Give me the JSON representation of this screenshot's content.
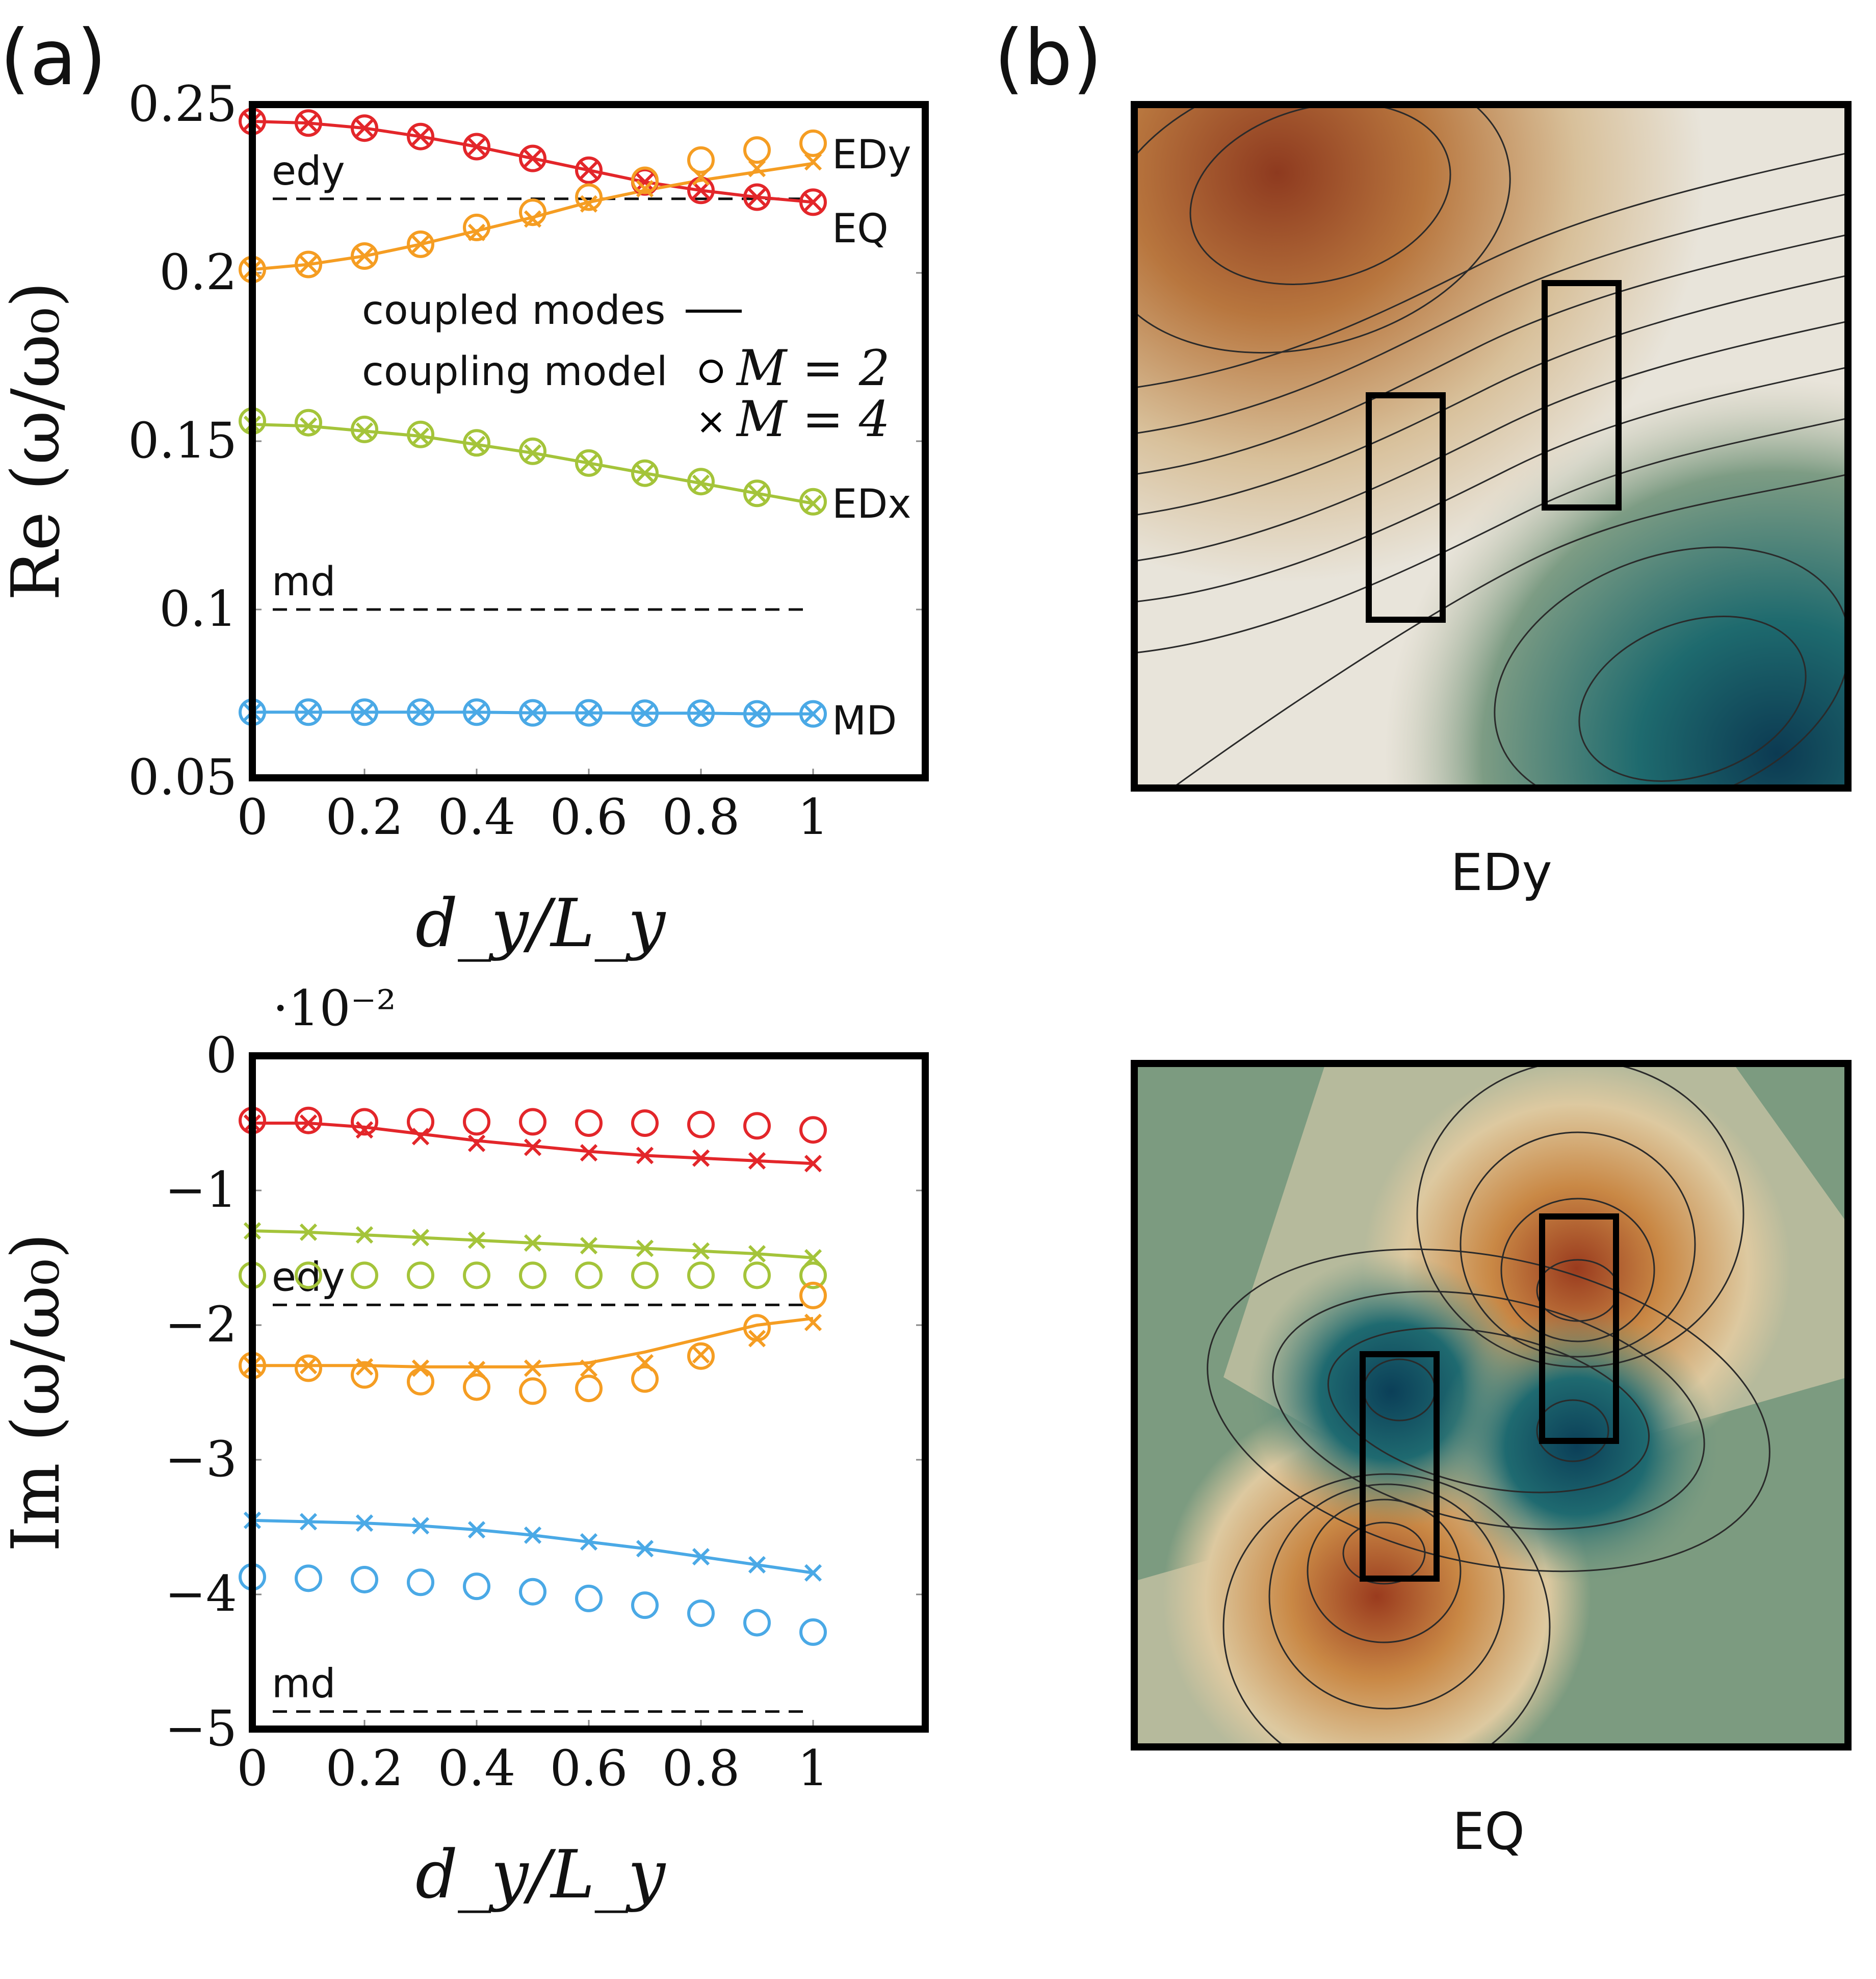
{
  "panels": {
    "a": "(a)",
    "b": "(b)"
  },
  "colors": {
    "EQ": "#e3262a",
    "EDy": "#f59d22",
    "EDx": "#a4c43a",
    "MD": "#4aa9e6",
    "dashed": "#111111"
  },
  "chart_data": [
    {
      "type": "line",
      "name": "real part",
      "ylabel": "Re (ω/ω₀)",
      "xlabel": "d_y/L_y",
      "ylim": [
        0.05,
        0.25
      ],
      "xlim": [
        0,
        1.2
      ],
      "yticks": [
        "0.25",
        "0.2",
        "0.15",
        "0.1",
        "0.05"
      ],
      "ytick_values": [
        0.25,
        0.2,
        0.15,
        0.1,
        0.05
      ],
      "xticks": [
        "0",
        "0.2",
        "0.4",
        "0.6",
        "0.8",
        "1"
      ],
      "x": [
        0,
        0.1,
        0.2,
        0.3,
        0.4,
        0.5,
        0.6,
        0.7,
        0.8,
        0.9,
        1.0
      ],
      "series": [
        {
          "name": "EQ",
          "color_key": "EQ",
          "line": [
            0.245,
            0.2445,
            0.243,
            0.2405,
            0.2375,
            0.234,
            0.2305,
            0.227,
            0.2245,
            0.2225,
            0.221
          ],
          "M2": [
            0.245,
            0.2445,
            0.243,
            0.2405,
            0.2375,
            0.234,
            0.2305,
            0.227,
            0.2245,
            0.2225,
            0.221
          ],
          "M4": [
            0.245,
            0.2445,
            0.243,
            0.2405,
            0.2375,
            0.234,
            0.2305,
            0.227,
            0.2245,
            0.2225,
            0.221
          ]
        },
        {
          "name": "EDy",
          "color_key": "EDy",
          "line": [
            0.201,
            0.2025,
            0.205,
            0.2085,
            0.2125,
            0.2165,
            0.221,
            0.2245,
            0.2275,
            0.23,
            0.2325
          ],
          "M2": [
            0.201,
            0.2025,
            0.205,
            0.2085,
            0.2135,
            0.218,
            0.2225,
            0.2275,
            0.2335,
            0.2365,
            0.2385
          ],
          "M4": [
            0.201,
            0.2025,
            0.205,
            0.2085,
            0.212,
            0.216,
            0.2205,
            0.225,
            0.2285,
            0.231,
            0.233
          ]
        },
        {
          "name": "EDx",
          "color_key": "EDx",
          "line": [
            0.155,
            0.1545,
            0.153,
            0.1515,
            0.149,
            0.1465,
            0.1435,
            0.1405,
            0.1375,
            0.1345,
            0.1315
          ],
          "M2": [
            0.156,
            0.1555,
            0.1535,
            0.152,
            0.1495,
            0.147,
            0.1435,
            0.1405,
            0.138,
            0.1345,
            0.132
          ],
          "M4": [
            0.155,
            0.1545,
            0.153,
            0.1515,
            0.149,
            0.1465,
            0.1435,
            0.1405,
            0.1375,
            0.1345,
            0.1315
          ]
        },
        {
          "name": "MD",
          "color_key": "MD",
          "line": [
            0.0695,
            0.0695,
            0.0695,
            0.0695,
            0.0695,
            0.0693,
            0.0693,
            0.0692,
            0.0692,
            0.069,
            0.069
          ],
          "M2": [
            0.0695,
            0.0695,
            0.0695,
            0.0695,
            0.0695,
            0.0693,
            0.0693,
            0.0692,
            0.0692,
            0.069,
            0.069
          ],
          "M4": [
            0.0695,
            0.0695,
            0.0695,
            0.0695,
            0.0695,
            0.0693,
            0.0693,
            0.0692,
            0.0692,
            0.069,
            0.069
          ]
        }
      ],
      "reference_lines": [
        {
          "label": "edy",
          "y": 0.222
        },
        {
          "label": "md",
          "y": 0.1
        }
      ],
      "series_labels": [
        "EDy",
        "EQ",
        "EDx",
        "MD"
      ],
      "legend": {
        "line_label": "coupled modes",
        "model_label": "coupling model",
        "m2_label": "M = 2",
        "m4_label": "M = 4",
        "placement": "center-right"
      }
    },
    {
      "type": "line",
      "name": "imaginary part",
      "ylabel": "Im (ω/ω₀)",
      "xlabel": "d_y/L_y",
      "scale_label": "·10⁻²",
      "ylim": [
        -5,
        0
      ],
      "xlim": [
        0,
        1.2
      ],
      "yticks": [
        "0",
        "−1",
        "−2",
        "−3",
        "−4",
        "−5"
      ],
      "ytick_values": [
        0,
        -1,
        -2,
        -3,
        -4,
        -5
      ],
      "xticks": [
        "0",
        "0.2",
        "0.4",
        "0.6",
        "0.8",
        "1"
      ],
      "x": [
        0,
        0.1,
        0.2,
        0.3,
        0.4,
        0.5,
        0.6,
        0.7,
        0.8,
        0.9,
        1.0
      ],
      "series": [
        {
          "name": "EQ",
          "color_key": "EQ",
          "line": [
            -0.5,
            -0.5,
            -0.53,
            -0.58,
            -0.63,
            -0.67,
            -0.71,
            -0.74,
            -0.76,
            -0.78,
            -0.8
          ],
          "M2": [
            -0.48,
            -0.48,
            -0.49,
            -0.49,
            -0.49,
            -0.49,
            -0.5,
            -0.5,
            -0.51,
            -0.52,
            -0.55
          ],
          "M4": [
            -0.5,
            -0.5,
            -0.55,
            -0.6,
            -0.65,
            -0.68,
            -0.72,
            -0.74,
            -0.76,
            -0.78,
            -0.8
          ]
        },
        {
          "name": "EDx",
          "color_key": "EDx",
          "line": [
            -1.3,
            -1.31,
            -1.33,
            -1.35,
            -1.37,
            -1.39,
            -1.41,
            -1.43,
            -1.45,
            -1.47,
            -1.5
          ],
          "M2": [
            -1.63,
            -1.63,
            -1.63,
            -1.63,
            -1.63,
            -1.63,
            -1.63,
            -1.63,
            -1.63,
            -1.63,
            -1.63
          ],
          "M4": [
            -1.3,
            -1.31,
            -1.33,
            -1.35,
            -1.37,
            -1.39,
            -1.41,
            -1.43,
            -1.45,
            -1.47,
            -1.5
          ]
        },
        {
          "name": "EDy",
          "color_key": "EDy",
          "line": [
            -2.3,
            -2.3,
            -2.3,
            -2.31,
            -2.31,
            -2.31,
            -2.28,
            -2.2,
            -2.1,
            -2.0,
            -1.95
          ],
          "M2": [
            -2.3,
            -2.32,
            -2.37,
            -2.42,
            -2.46,
            -2.49,
            -2.47,
            -2.4,
            -2.23,
            -2.02,
            -1.78
          ],
          "M4": [
            -2.3,
            -2.3,
            -2.31,
            -2.32,
            -2.33,
            -2.32,
            -2.32,
            -2.28,
            -2.22,
            -2.1,
            -1.98
          ]
        },
        {
          "name": "MD",
          "color_key": "MD",
          "line": [
            -3.45,
            -3.46,
            -3.47,
            -3.49,
            -3.52,
            -3.56,
            -3.61,
            -3.66,
            -3.72,
            -3.78,
            -3.84
          ],
          "M2": [
            -3.87,
            -3.88,
            -3.89,
            -3.91,
            -3.94,
            -3.98,
            -4.03,
            -4.08,
            -4.14,
            -4.21,
            -4.28
          ],
          "M4": [
            -3.45,
            -3.46,
            -3.47,
            -3.49,
            -3.52,
            -3.56,
            -3.61,
            -3.66,
            -3.72,
            -3.78,
            -3.84
          ]
        }
      ],
      "reference_lines": [
        {
          "label": "edy",
          "y": -1.85
        },
        {
          "label": "md",
          "y": -4.87
        }
      ]
    }
  ],
  "maps": [
    {
      "caption": "EDy",
      "colormap": "brown-white-teal"
    },
    {
      "caption": "EQ",
      "colormap": "brown-white-teal"
    }
  ]
}
